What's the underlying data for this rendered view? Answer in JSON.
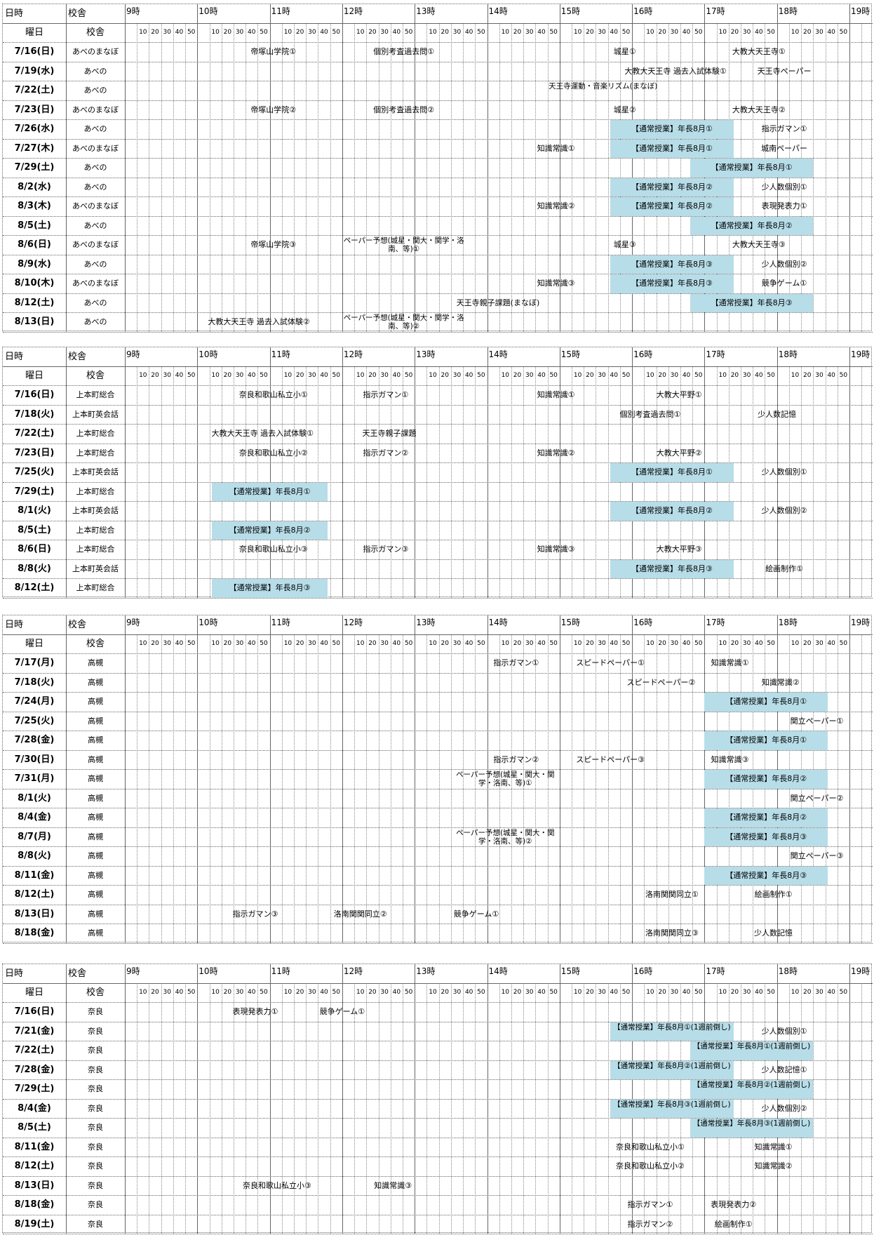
{
  "header_labels": {
    "datetime": "日時",
    "campus": "校舎",
    "weekday": "曜日"
  },
  "hour_labels": [
    "9時",
    "10時",
    "11時",
    "12時",
    "13時",
    "14時",
    "15時",
    "16時",
    "17時",
    "18時",
    "19時"
  ],
  "minute_labels": [
    "10",
    "20",
    "30",
    "40",
    "50"
  ],
  "highlight_color": "#b7dde8",
  "sections": [
    {
      "rows": [
        {
          "date": "7/16(日)",
          "campus": "あべのまなぼ",
          "events": [
            {
              "text": "帝塚山学院①",
              "start": 10.4,
              "end": 11.7
            },
            {
              "text": "個別考査過去問①",
              "start": 12.0,
              "end": 13.7
            },
            {
              "text": "城星①",
              "start": 15.0,
              "end": 16.8
            },
            {
              "text": "大教大天王寺①",
              "start": 17.0,
              "end": 18.5
            }
          ]
        },
        {
          "date": "7/19(水)",
          "campus": "あべの",
          "events": [
            {
              "text": "大教大天王寺 過去入試体験①",
              "start": 15.8,
              "end": 17.4
            },
            {
              "text": "天王寺ペーパー",
              "start": 17.4,
              "end": 18.8
            }
          ]
        },
        {
          "date": "7/22(土)",
          "campus": "あべの",
          "events": [
            {
              "text": "天王寺運動・音楽リズム(まなぼ)",
              "start": 14.8,
              "end": 16.4
            }
          ]
        },
        {
          "date": "7/23(日)",
          "campus": "あべのまなぼ",
          "events": [
            {
              "text": "帝塚山学院②",
              "start": 10.4,
              "end": 11.7
            },
            {
              "text": "個別考査過去問②",
              "start": 12.0,
              "end": 13.7
            },
            {
              "text": "城星②",
              "start": 15.0,
              "end": 16.8
            },
            {
              "text": "大教大天王寺②",
              "start": 17.0,
              "end": 18.5
            }
          ]
        },
        {
          "date": "7/26(水)",
          "campus": "あべの",
          "events": [
            {
              "text": "【通常授業】年長8月①",
              "start": 15.7,
              "end": 17.4,
              "hl": true
            },
            {
              "text": "指示ガマン①",
              "start": 17.4,
              "end": 18.8
            }
          ]
        },
        {
          "date": "7/27(木)",
          "campus": "あべのまなぼ",
          "events": [
            {
              "text": "知識常識①",
              "start": 14.2,
              "end": 15.7
            },
            {
              "text": "【通常授業】年長8月①",
              "start": 15.7,
              "end": 17.4,
              "hl": true
            },
            {
              "text": "城南ペーパー",
              "start": 17.4,
              "end": 18.8
            }
          ]
        },
        {
          "date": "7/29(土)",
          "campus": "あべの",
          "events": [
            {
              "text": "【通常授業】年長8月①",
              "start": 16.8,
              "end": 18.5,
              "hl": true
            }
          ]
        },
        {
          "date": "8/2(水)",
          "campus": "あべの",
          "events": [
            {
              "text": "【通常授業】年長8月②",
              "start": 15.7,
              "end": 17.4,
              "hl": true
            },
            {
              "text": "少人数個別①",
              "start": 17.4,
              "end": 18.8
            }
          ]
        },
        {
          "date": "8/3(木)",
          "campus": "あべのまなぼ",
          "events": [
            {
              "text": "知識常識②",
              "start": 14.2,
              "end": 15.7
            },
            {
              "text": "【通常授業】年長8月②",
              "start": 15.7,
              "end": 17.4,
              "hl": true
            },
            {
              "text": "表現発表力①",
              "start": 17.4,
              "end": 18.8
            }
          ]
        },
        {
          "date": "8/5(土)",
          "campus": "あべの",
          "events": [
            {
              "text": "【通常授業】年長8月②",
              "start": 16.8,
              "end": 18.5,
              "hl": true
            }
          ]
        },
        {
          "date": "8/6(日)",
          "campus": "あべのまなぼ",
          "events": [
            {
              "text": "帝塚山学院③",
              "start": 10.4,
              "end": 11.7
            },
            {
              "text": "ペーパー予想(城星・関大・関学・洛南、等)①",
              "start": 12.0,
              "end": 13.7
            },
            {
              "text": "城星③",
              "start": 15.0,
              "end": 16.8
            },
            {
              "text": "大教大天王寺③",
              "start": 17.0,
              "end": 18.5
            }
          ]
        },
        {
          "date": "8/9(水)",
          "campus": "あべの",
          "events": [
            {
              "text": "【通常授業】年長8月③",
              "start": 15.7,
              "end": 17.4,
              "hl": true
            },
            {
              "text": "少人数個別②",
              "start": 17.4,
              "end": 18.8
            }
          ]
        },
        {
          "date": "8/10(木)",
          "campus": "あべのまなぼ",
          "events": [
            {
              "text": "知識常識③",
              "start": 14.2,
              "end": 15.7
            },
            {
              "text": "【通常授業】年長8月③",
              "start": 15.7,
              "end": 17.4,
              "hl": true
            },
            {
              "text": "競争ゲーム①",
              "start": 17.4,
              "end": 18.8
            }
          ]
        },
        {
          "date": "8/12(土)",
          "campus": "あべの",
          "events": [
            {
              "text": "天王寺親子課題(まなぼ)",
              "start": 13.5,
              "end": 14.8
            },
            {
              "text": "【通常授業】年長8月③",
              "start": 16.8,
              "end": 18.5,
              "hl": true
            }
          ]
        },
        {
          "date": "8/13(日)",
          "campus": "あべの",
          "events": [
            {
              "text": "大教大天王寺 過去入試体験②",
              "start": 10.0,
              "end": 11.7
            },
            {
              "text": "ペーパー予想(城星・関大・関学・洛南、等)②",
              "start": 12.0,
              "end": 13.7
            }
          ]
        }
      ]
    },
    {
      "rows": [
        {
          "date": "7/16(日)",
          "campus": "上本町総合",
          "events": [
            {
              "text": "奈良和歌山私立小①",
              "start": 10.3,
              "end": 11.8
            },
            {
              "text": "指示ガマン①",
              "start": 12.0,
              "end": 13.2
            },
            {
              "text": "知識常識①",
              "start": 14.2,
              "end": 15.7
            },
            {
              "text": "大教大平野①",
              "start": 15.9,
              "end": 17.4
            }
          ]
        },
        {
          "date": "7/18(火)",
          "campus": "上本町英会話",
          "events": [
            {
              "text": "個別考査過去問①",
              "start": 15.5,
              "end": 17.0
            },
            {
              "text": "少人数記憶",
              "start": 17.3,
              "end": 18.7
            }
          ]
        },
        {
          "date": "7/22(土)",
          "campus": "上本町総合",
          "events": [
            {
              "text": "大教大天王寺 過去入試体験①",
              "start": 10.0,
              "end": 11.8
            },
            {
              "text": "天王寺親子課題",
              "start": 12.0,
              "end": 13.3
            }
          ]
        },
        {
          "date": "7/23(日)",
          "campus": "上本町総合",
          "events": [
            {
              "text": "奈良和歌山私立小②",
              "start": 10.3,
              "end": 11.8
            },
            {
              "text": "指示ガマン②",
              "start": 12.0,
              "end": 13.2
            },
            {
              "text": "知識常識②",
              "start": 14.2,
              "end": 15.7
            },
            {
              "text": "大教大平野②",
              "start": 15.9,
              "end": 17.4
            }
          ]
        },
        {
          "date": "7/25(火)",
          "campus": "上本町英会話",
          "events": [
            {
              "text": "【通常授業】年長8月①",
              "start": 15.7,
              "end": 17.4,
              "hl": true
            },
            {
              "text": "少人数個別①",
              "start": 17.4,
              "end": 18.8
            }
          ]
        },
        {
          "date": "7/29(土)",
          "campus": "上本町総合",
          "events": [
            {
              "text": "【通常授業】年長8月①",
              "start": 10.2,
              "end": 11.8,
              "hl": true
            }
          ]
        },
        {
          "date": "8/1(火)",
          "campus": "上本町英会話",
          "events": [
            {
              "text": "【通常授業】年長8月②",
              "start": 15.7,
              "end": 17.4,
              "hl": true
            },
            {
              "text": "少人数個別②",
              "start": 17.4,
              "end": 18.8
            }
          ]
        },
        {
          "date": "8/5(土)",
          "campus": "上本町総合",
          "events": [
            {
              "text": "【通常授業】年長8月②",
              "start": 10.2,
              "end": 11.8,
              "hl": true
            }
          ]
        },
        {
          "date": "8/6(日)",
          "campus": "上本町総合",
          "events": [
            {
              "text": "奈良和歌山私立小③",
              "start": 10.3,
              "end": 11.8
            },
            {
              "text": "指示ガマン③",
              "start": 12.0,
              "end": 13.2
            },
            {
              "text": "知識常識③",
              "start": 14.2,
              "end": 15.7
            },
            {
              "text": "大教大平野③",
              "start": 15.9,
              "end": 17.4
            }
          ]
        },
        {
          "date": "8/8(火)",
          "campus": "上本町英会話",
          "events": [
            {
              "text": "【通常授業】年長8月③",
              "start": 15.7,
              "end": 17.4,
              "hl": true
            },
            {
              "text": "絵画制作①",
              "start": 17.4,
              "end": 18.8
            }
          ]
        },
        {
          "date": "8/12(土)",
          "campus": "上本町総合",
          "events": [
            {
              "text": "【通常授業】年長8月③",
              "start": 10.2,
              "end": 11.8,
              "hl": true
            }
          ]
        }
      ]
    },
    {
      "rows": [
        {
          "date": "7/17(月)",
          "campus": "高槻",
          "events": [
            {
              "text": "指示ガマン①",
              "start": 13.7,
              "end": 15.1
            },
            {
              "text": "スピードペーパー①",
              "start": 14.9,
              "end": 16.5
            },
            {
              "text": "知識常識①",
              "start": 16.6,
              "end": 18.1
            }
          ]
        },
        {
          "date": "7/18(火)",
          "campus": "高槻",
          "events": [
            {
              "text": "スピードペーパー②",
              "start": 15.6,
              "end": 17.2
            },
            {
              "text": "知識常識②",
              "start": 17.3,
              "end": 18.8
            }
          ]
        },
        {
          "date": "7/24(月)",
          "campus": "高槻",
          "events": [
            {
              "text": "【通常授業】年長8月①",
              "start": 17.0,
              "end": 18.7,
              "hl": true
            }
          ]
        },
        {
          "date": "7/25(火)",
          "campus": "高槻",
          "events": [
            {
              "text": "関立ペーパー①",
              "start": 17.9,
              "end": 19.2
            }
          ]
        },
        {
          "date": "7/28(金)",
          "campus": "高槻",
          "events": [
            {
              "text": "【通常授業】年長8月①",
              "start": 17.0,
              "end": 18.7,
              "hl": true
            }
          ]
        },
        {
          "date": "7/30(日)",
          "campus": "高槻",
          "events": [
            {
              "text": "指示ガマン②",
              "start": 13.7,
              "end": 15.1
            },
            {
              "text": "スピードペーパー③",
              "start": 14.9,
              "end": 16.5
            },
            {
              "text": "知識常識③",
              "start": 16.6,
              "end": 18.1
            }
          ]
        },
        {
          "date": "7/31(月)",
          "campus": "高槻",
          "events": [
            {
              "text": "ペーパー予想(城星・関大・関学・洛南、等)①",
              "start": 13.5,
              "end": 15.0
            },
            {
              "text": "【通常授業】年長8月②",
              "start": 17.0,
              "end": 18.7,
              "hl": true
            }
          ]
        },
        {
          "date": "8/1(火)",
          "campus": "高槻",
          "events": [
            {
              "text": "関立ペーパー②",
              "start": 17.9,
              "end": 19.2
            }
          ]
        },
        {
          "date": "8/4(金)",
          "campus": "高槻",
          "events": [
            {
              "text": "【通常授業】年長8月②",
              "start": 17.0,
              "end": 18.7,
              "hl": true
            }
          ]
        },
        {
          "date": "8/7(月)",
          "campus": "高槻",
          "events": [
            {
              "text": "ペーパー予想(城星・関大・関学・洛南、等)②",
              "start": 13.5,
              "end": 15.0
            },
            {
              "text": "【通常授業】年長8月③",
              "start": 17.0,
              "end": 18.7,
              "hl": true
            }
          ]
        },
        {
          "date": "8/8(火)",
          "campus": "高槻",
          "events": [
            {
              "text": "関立ペーパー③",
              "start": 17.9,
              "end": 19.2
            }
          ]
        },
        {
          "date": "8/11(金)",
          "campus": "高槻",
          "events": [
            {
              "text": "【通常授業】年長8月③",
              "start": 17.0,
              "end": 18.7,
              "hl": true
            }
          ]
        },
        {
          "date": "8/12(土)",
          "campus": "高槻",
          "events": [
            {
              "text": "洛南関関同立①",
              "start": 15.9,
              "end": 17.2
            },
            {
              "text": "絵画制作①",
              "start": 17.2,
              "end": 18.7
            }
          ]
        },
        {
          "date": "8/13(日)",
          "campus": "高槻",
          "events": [
            {
              "text": "指示ガマン③",
              "start": 10.1,
              "end": 11.5
            },
            {
              "text": "洛南関関同立②",
              "start": 11.5,
              "end": 13.0
            },
            {
              "text": "競争ゲーム①",
              "start": 13.0,
              "end": 14.7
            }
          ]
        },
        {
          "date": "8/18(金)",
          "campus": "高槻",
          "events": [
            {
              "text": "洛南関関同立③",
              "start": 15.9,
              "end": 17.2
            },
            {
              "text": "少人数記憶",
              "start": 17.2,
              "end": 18.7
            }
          ]
        }
      ]
    },
    {
      "rows": [
        {
          "date": "7/16(日)",
          "campus": "奈良",
          "events": [
            {
              "text": "表現発表力①",
              "start": 10.2,
              "end": 11.4
            },
            {
              "text": "競争ゲーム①",
              "start": 11.4,
              "end": 12.6
            }
          ]
        },
        {
          "date": "7/21(金)",
          "campus": "奈良",
          "events": [
            {
              "text": "【通常授業】年長8月①(1週前倒し)",
              "start": 15.7,
              "end": 17.4,
              "hl": true
            },
            {
              "text": "少人数個別①",
              "start": 17.4,
              "end": 18.8
            }
          ]
        },
        {
          "date": "7/22(土)",
          "campus": "奈良",
          "events": [
            {
              "text": "【通常授業】年長8月①(1週前倒し)",
              "start": 16.8,
              "end": 18.5,
              "hl": true
            }
          ]
        },
        {
          "date": "7/28(金)",
          "campus": "奈良",
          "events": [
            {
              "text": "【通常授業】年長8月②(1週前倒し)",
              "start": 15.7,
              "end": 17.4,
              "hl": true
            },
            {
              "text": "少人数記憶①",
              "start": 17.4,
              "end": 18.8
            }
          ]
        },
        {
          "date": "7/29(土)",
          "campus": "奈良",
          "events": [
            {
              "text": "【通常授業】年長8月②(1週前倒し)",
              "start": 16.8,
              "end": 18.5,
              "hl": true
            }
          ]
        },
        {
          "date": "8/4(金)",
          "campus": "奈良",
          "events": [
            {
              "text": "【通常授業】年長8月③(1週前倒し)",
              "start": 15.7,
              "end": 17.4,
              "hl": true
            },
            {
              "text": "少人数個別②",
              "start": 17.4,
              "end": 18.8
            }
          ]
        },
        {
          "date": "8/5(土)",
          "campus": "奈良",
          "events": [
            {
              "text": "【通常授業】年長8月③(1週前倒し)",
              "start": 16.8,
              "end": 18.5,
              "hl": true
            }
          ]
        },
        {
          "date": "8/11(金)",
          "campus": "奈良",
          "events": [
            {
              "text": "奈良和歌山私立小①",
              "start": 15.3,
              "end": 17.2
            },
            {
              "text": "知識常識①",
              "start": 17.2,
              "end": 18.7
            }
          ]
        },
        {
          "date": "8/12(土)",
          "campus": "奈良",
          "events": [
            {
              "text": "奈良和歌山私立小②",
              "start": 15.3,
              "end": 17.2
            },
            {
              "text": "知識常識②",
              "start": 17.2,
              "end": 18.7
            }
          ]
        },
        {
          "date": "8/13(日)",
          "campus": "奈良",
          "events": [
            {
              "text": "奈良和歌山私立小③",
              "start": 10.3,
              "end": 11.9
            },
            {
              "text": "知識常識③",
              "start": 11.9,
              "end": 13.5
            }
          ]
        },
        {
          "date": "8/18(金)",
          "campus": "奈良",
          "events": [
            {
              "text": "指示ガマン①",
              "start": 15.7,
              "end": 16.8
            },
            {
              "text": "表現発表力②",
              "start": 16.8,
              "end": 18.0
            }
          ]
        },
        {
          "date": "8/19(土)",
          "campus": "奈良",
          "events": [
            {
              "text": "指示ガマン②",
              "start": 15.7,
              "end": 16.8
            },
            {
              "text": "絵画制作①",
              "start": 16.8,
              "end": 18.0
            }
          ]
        }
      ]
    }
  ]
}
